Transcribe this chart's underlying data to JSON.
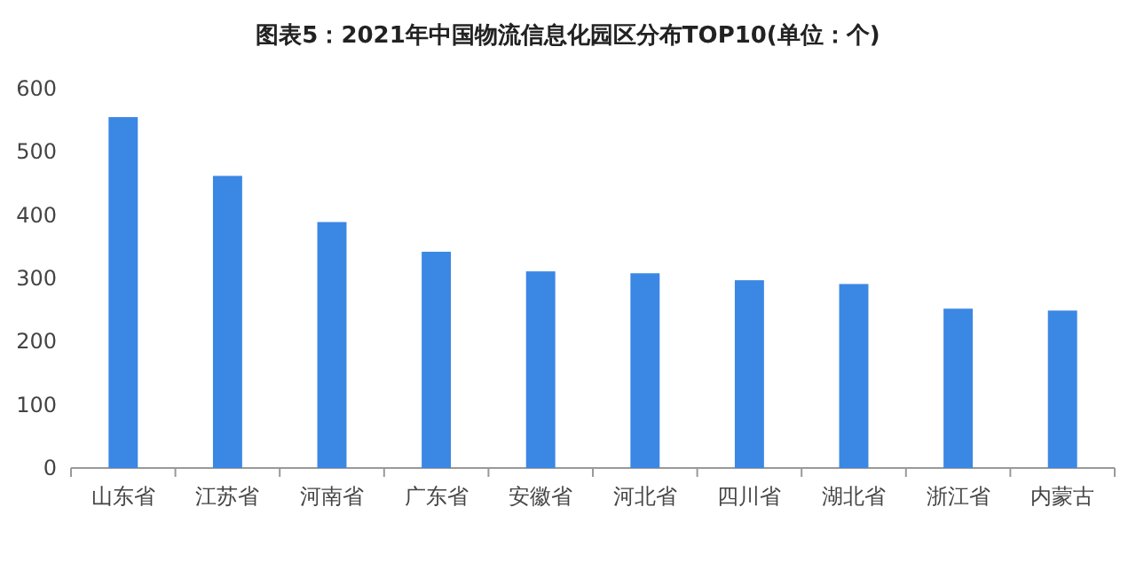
{
  "chart_data": {
    "type": "bar",
    "title": "图表5：2021年中国物流信息化园区分布TOP10(单位：个)",
    "categories": [
      "山东省",
      "江苏省",
      "河南省",
      "广东省",
      "安徽省",
      "河北省",
      "四川省",
      "湖北省",
      "浙江省",
      "内蒙古"
    ],
    "values": [
      555,
      462,
      389,
      342,
      311,
      308,
      297,
      291,
      252,
      249
    ],
    "color": "#3b87e4",
    "ylim": [
      0,
      600
    ],
    "yticks": [
      0,
      100,
      200,
      300,
      400,
      500,
      600
    ]
  }
}
